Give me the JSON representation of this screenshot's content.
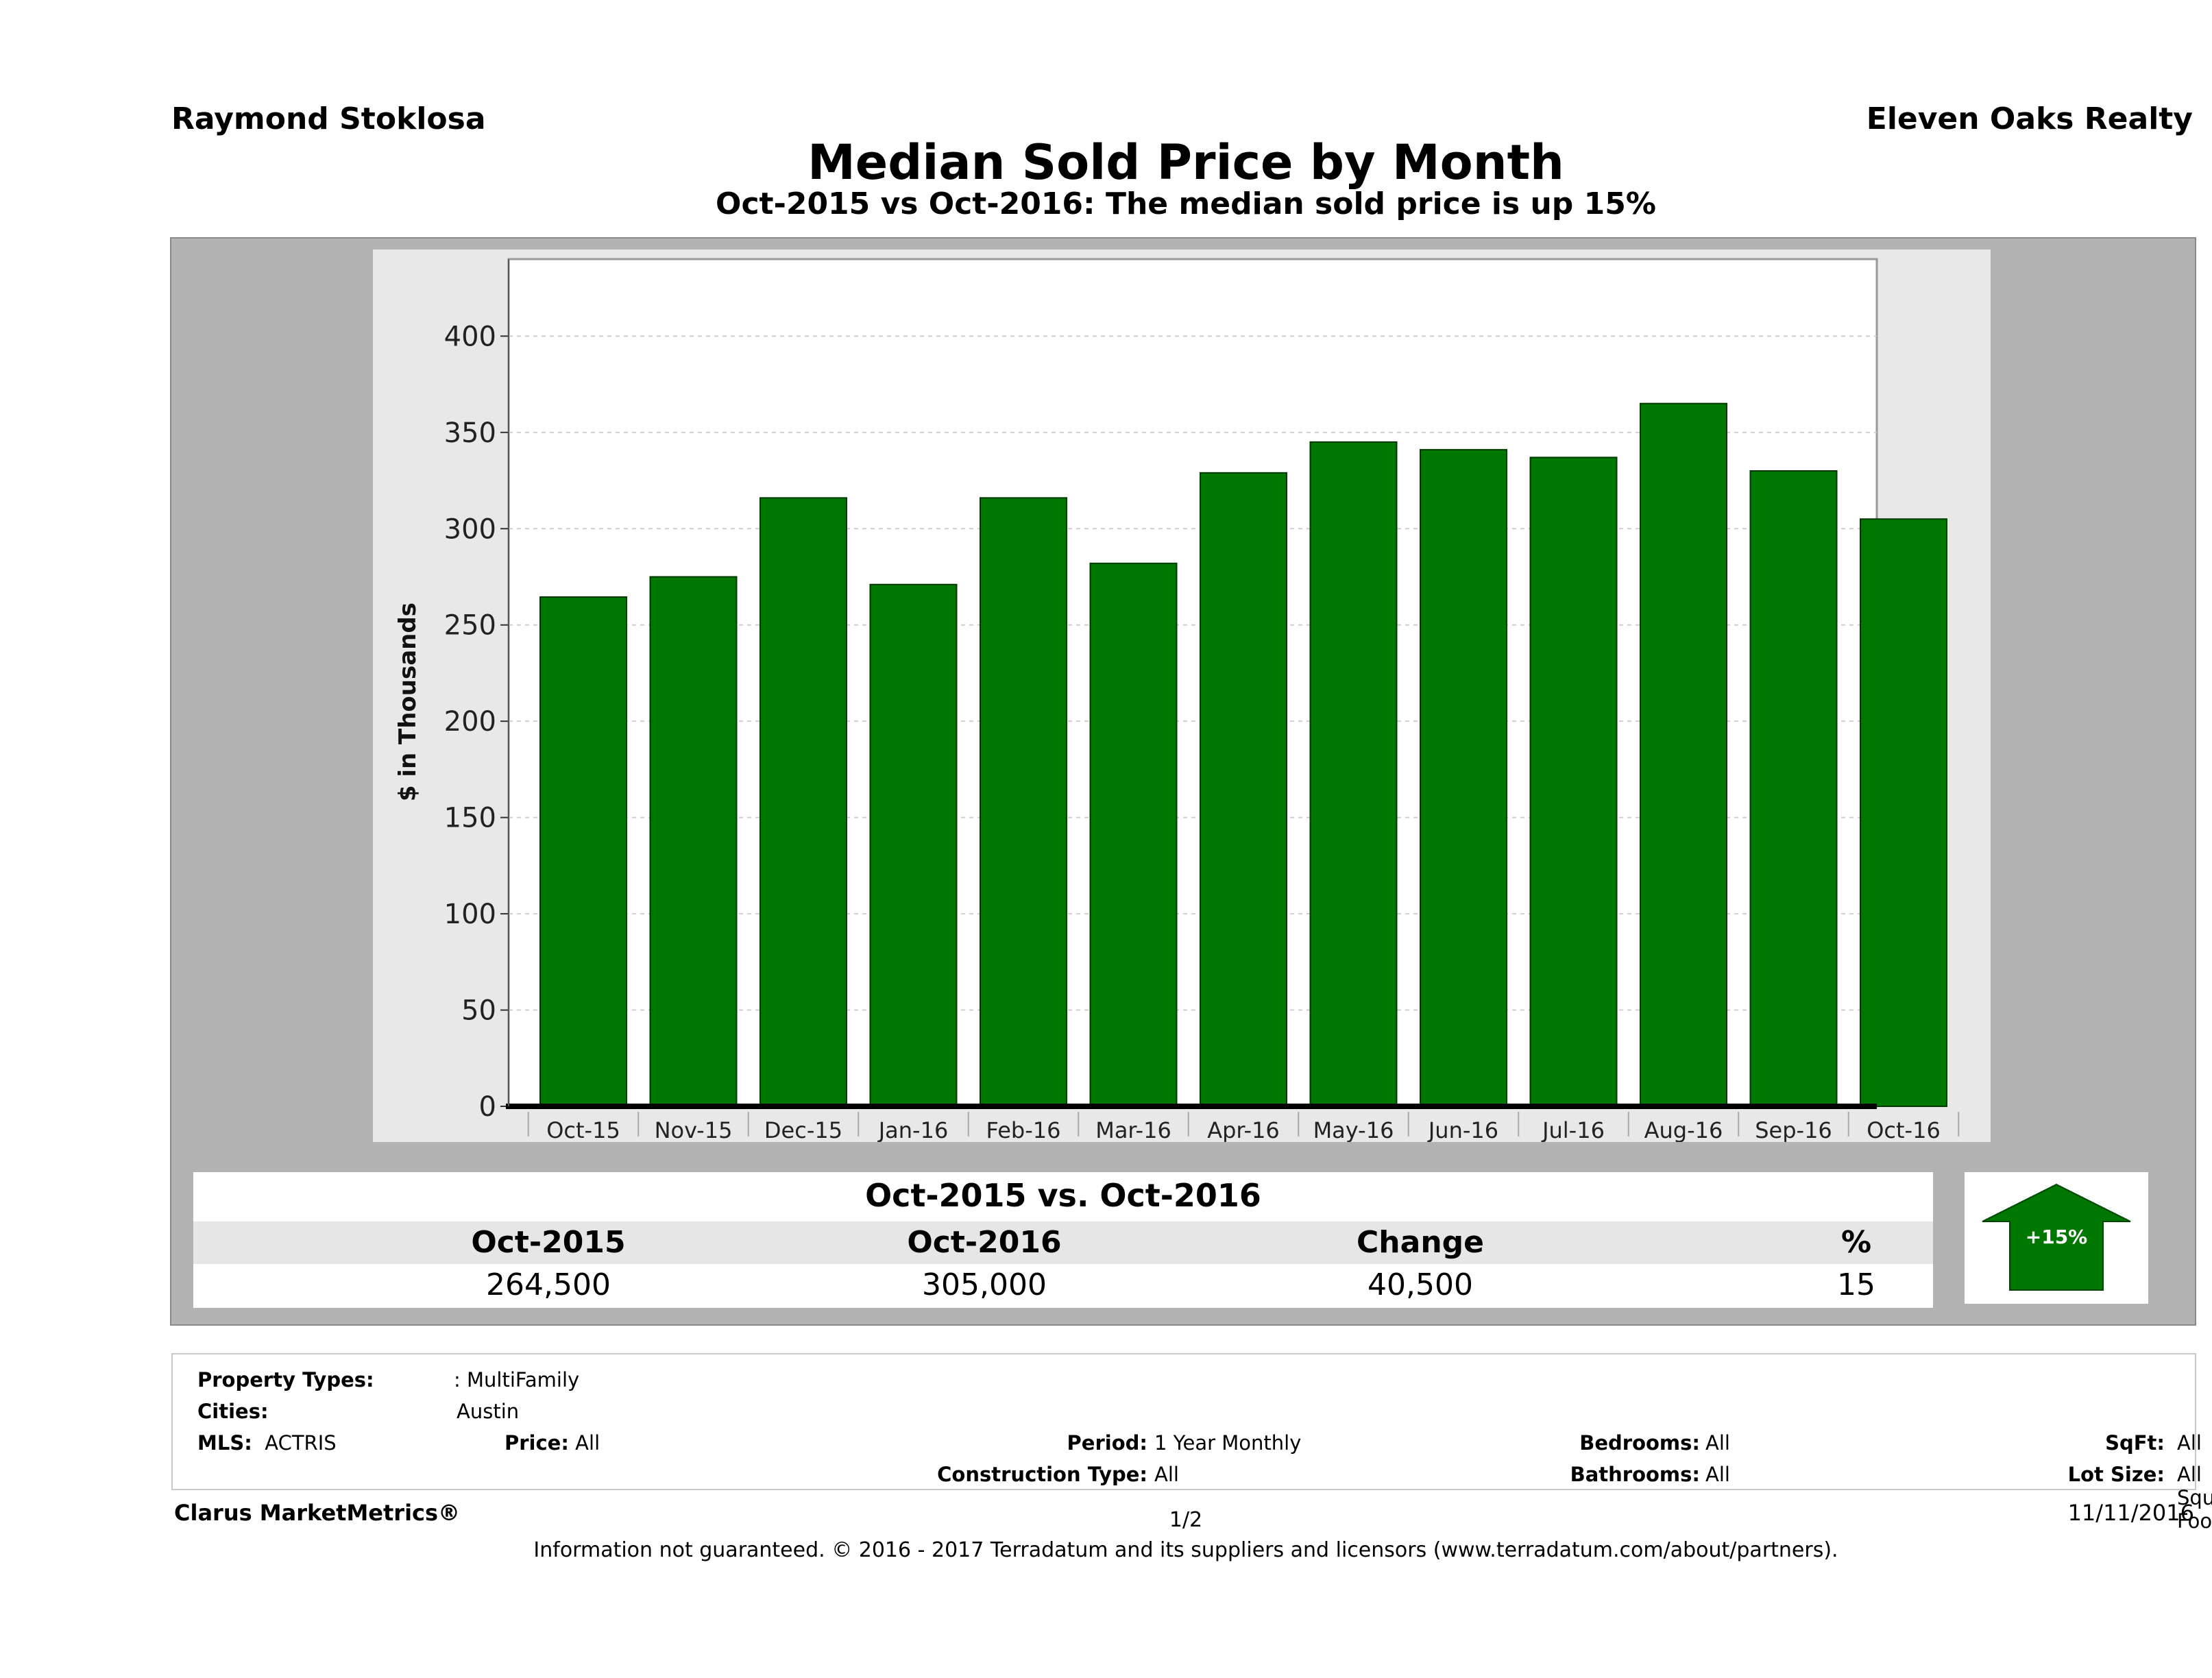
{
  "header": {
    "agent": "Raymond Stoklosa",
    "company": "Eleven Oaks Realty",
    "title": "Median Sold Price by Month",
    "subtitle": "Oct-2015 vs Oct-2016: The median sold price is up 15%"
  },
  "chart_data": {
    "type": "bar",
    "ylabel": "$ in Thousands",
    "ylim": [
      0,
      440
    ],
    "yticks": [
      0,
      50,
      100,
      150,
      200,
      250,
      300,
      350,
      400
    ],
    "grid": true,
    "bar_color": "#007700",
    "categories": [
      "Oct-15",
      "Nov-15",
      "Dec-15",
      "Jan-16",
      "Feb-16",
      "Mar-16",
      "Apr-16",
      "May-16",
      "Jun-16",
      "Jul-16",
      "Aug-16",
      "Sep-16",
      "Oct-16"
    ],
    "values": [
      264.5,
      275,
      316,
      271,
      316,
      282,
      329,
      345,
      341,
      337,
      365,
      330,
      305
    ]
  },
  "summary": {
    "heading": "Oct-2015 vs. Oct-2016",
    "columns": [
      "Oct-2015",
      "Oct-2016",
      "Change",
      "%"
    ],
    "values": [
      "264,500",
      "305,000",
      "40,500",
      "15"
    ],
    "badge": "+15%",
    "badge_color": "#007700"
  },
  "details": {
    "property_types_label": "Property Types:",
    "property_types_value": ": MultiFamily",
    "cities_label": "Cities:",
    "cities_value": "Austin",
    "mls_label": "MLS:",
    "mls_value": "ACTRIS",
    "price_label": "Price:",
    "price_value": "All",
    "period_label": "Period:",
    "period_value": "1 Year Monthly",
    "construction_label": "Construction Type:",
    "construction_value": "All",
    "bedrooms_label": "Bedrooms:",
    "bedrooms_value": "All",
    "bathrooms_label": "Bathrooms:",
    "bathrooms_value": "All",
    "sqft_label": "SqFt:",
    "sqft_value": "All",
    "lotsize_label": "Lot Size:",
    "lotsize_value": "All Square Footage"
  },
  "footer": {
    "brand": "Clarus MarketMetrics®",
    "page": "1/2",
    "date": "11/11/2016",
    "note": "Information not guaranteed. © 2016 - 2017 Terradatum and its suppliers and licensors (www.terradatum.com/about/partners)."
  }
}
